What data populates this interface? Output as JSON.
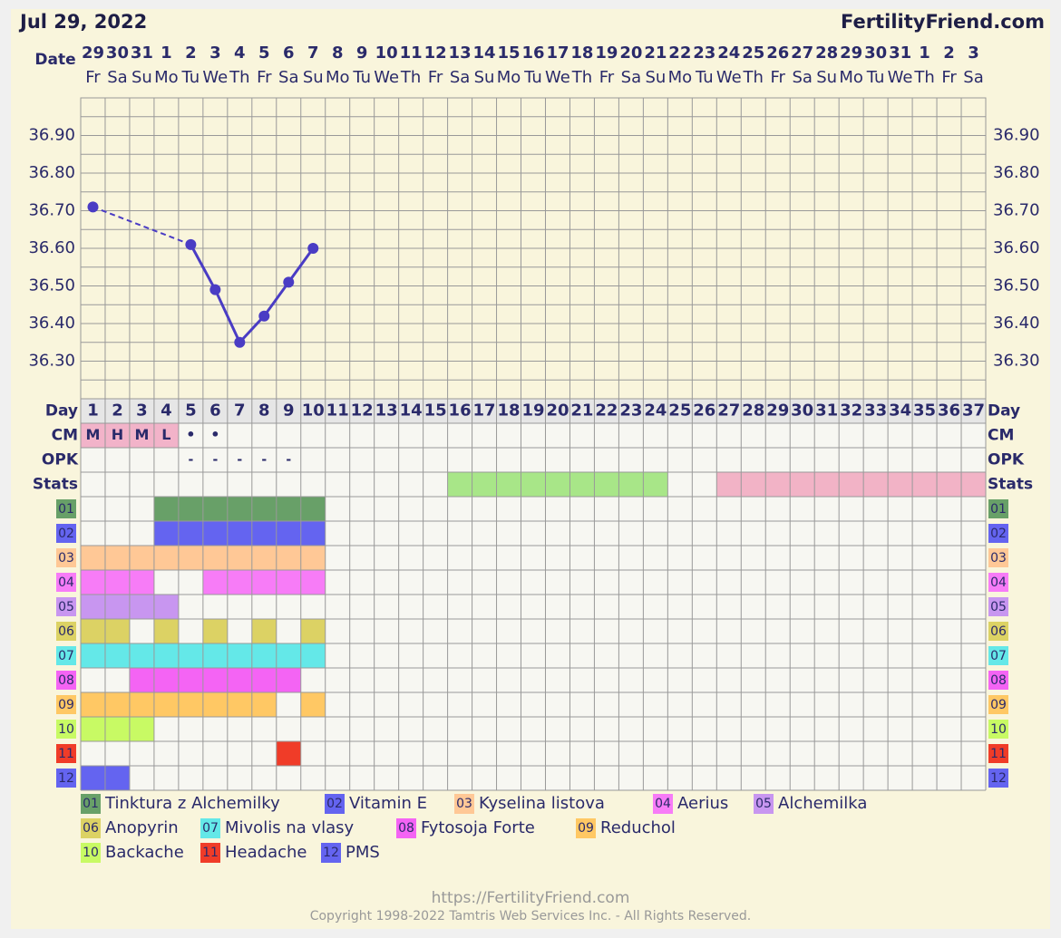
{
  "header": {
    "date": "Jul 29, 2022",
    "site": "FertilityFriend.com"
  },
  "chart_data": {
    "type": "line",
    "date_label": "Date",
    "day_label": "Day",
    "cm_label": "CM",
    "opk_label": "OPK",
    "stats_label": "Stats",
    "categories": [
      "29",
      "30",
      "31",
      "1",
      "2",
      "3",
      "4",
      "5",
      "6",
      "7",
      "8",
      "9",
      "10",
      "11",
      "12",
      "13",
      "14",
      "15",
      "16",
      "17",
      "18",
      "19",
      "20",
      "21",
      "22",
      "23",
      "24",
      "25",
      "26",
      "27",
      "28",
      "29",
      "30",
      "31",
      "1",
      "2",
      "3"
    ],
    "weekdays": [
      "Fr",
      "Sa",
      "Su",
      "Mo",
      "Tu",
      "We",
      "Th",
      "Fr",
      "Sa",
      "Su",
      "Mo",
      "Tu",
      "We",
      "Th",
      "Fr",
      "Sa",
      "Su",
      "Mo",
      "Tu",
      "We",
      "Th",
      "Fr",
      "Sa",
      "Su",
      "Mo",
      "Tu",
      "We",
      "Th",
      "Fr",
      "Sa",
      "Su",
      "Mo",
      "Tu",
      "We",
      "Th",
      "Fr",
      "Sa"
    ],
    "days": [
      1,
      2,
      3,
      4,
      5,
      6,
      7,
      8,
      9,
      10,
      11,
      12,
      13,
      14,
      15,
      16,
      17,
      18,
      19,
      20,
      21,
      22,
      23,
      24,
      25,
      26,
      27,
      28,
      29,
      30,
      31,
      32,
      33,
      34,
      35,
      36,
      37
    ],
    "series": [
      {
        "color": "#4a3cc4",
        "values": [
          36.71,
          null,
          null,
          null,
          36.61,
          36.49,
          36.35,
          36.42,
          36.51,
          36.6,
          null,
          null,
          null,
          null,
          null,
          null,
          null,
          null,
          null,
          null,
          null,
          null,
          null,
          null,
          null,
          null,
          null,
          null,
          null,
          null,
          null,
          null,
          null,
          null,
          null,
          null,
          null
        ]
      }
    ],
    "ylim": [
      36.2,
      37.0
    ],
    "yticks": [
      {
        "value": 36.3,
        "label": "36.30"
      },
      {
        "value": 36.4,
        "label": "36.40"
      },
      {
        "value": 36.5,
        "label": "36.50"
      },
      {
        "value": 36.6,
        "label": "36.60"
      },
      {
        "value": 36.7,
        "label": "36.70"
      },
      {
        "value": 36.8,
        "label": "36.80"
      },
      {
        "value": 36.9,
        "label": "36.90"
      }
    ],
    "grid": true,
    "cm": [
      "M",
      "H",
      "M",
      "L",
      "•",
      "•",
      null,
      null,
      null,
      null,
      null,
      null,
      null,
      null,
      null,
      null,
      null,
      null,
      null,
      null,
      null,
      null,
      null,
      null,
      null,
      null,
      null,
      null,
      null,
      null,
      null,
      null,
      null,
      null,
      null,
      null,
      null
    ],
    "cm_colors": [
      "#f2b3c9",
      "#f2b3c9",
      "#f2b3c9",
      "#f2b3c9",
      null,
      null,
      null,
      null,
      null,
      null,
      null,
      null,
      null,
      null,
      null,
      null,
      null,
      null,
      null,
      null,
      null,
      null,
      null,
      null,
      null,
      null,
      null,
      null,
      null,
      null,
      null,
      null,
      null,
      null,
      null,
      null,
      null
    ],
    "opk": [
      null,
      null,
      null,
      null,
      "-",
      "-",
      "-",
      "-",
      "-",
      null,
      null,
      null,
      null,
      null,
      null,
      null,
      null,
      null,
      null,
      null,
      null,
      null,
      null,
      null,
      null,
      null,
      null,
      null,
      null,
      null,
      null,
      null,
      null,
      null,
      null,
      null,
      null
    ],
    "stats": [
      null,
      null,
      null,
      null,
      null,
      null,
      null,
      null,
      null,
      null,
      null,
      null,
      null,
      null,
      null,
      "#a8e688",
      "#a8e688",
      "#a8e688",
      "#a8e688",
      "#a8e688",
      "#a8e688",
      "#a8e688",
      "#a8e688",
      "#a8e688",
      null,
      null,
      "#f2b3c6",
      "#f2b3c6",
      "#f2b3c6",
      "#f2b3c6",
      "#f2b3c6",
      "#f2b3c6",
      "#f2b3c6",
      "#f2b3c6",
      "#f2b3c6",
      "#f2b3c6",
      "#f2b3c6"
    ],
    "items": [
      {
        "code": "01",
        "name": "Tinktura z Alchemilky",
        "color": "#68a068",
        "days": [
          4,
          5,
          6,
          7,
          8,
          9,
          10
        ]
      },
      {
        "code": "02",
        "name": "Vitamin E",
        "color": "#6464f0",
        "days": [
          4,
          5,
          6,
          7,
          8,
          9,
          10
        ]
      },
      {
        "code": "03",
        "name": "Kyselina listova",
        "color": "#ffc896",
        "days": [
          1,
          2,
          3,
          4,
          5,
          6,
          7,
          8,
          9,
          10
        ]
      },
      {
        "code": "04",
        "name": "Aerius",
        "color": "#f77cf7",
        "days": [
          1,
          2,
          3,
          6,
          7,
          8,
          9,
          10
        ]
      },
      {
        "code": "05",
        "name": "Alchemilka",
        "color": "#c896f0",
        "days": [
          1,
          2,
          3,
          4
        ]
      },
      {
        "code": "06",
        "name": "Anopyrin",
        "color": "#dcd264",
        "days": [
          1,
          2,
          4,
          6,
          8,
          10
        ]
      },
      {
        "code": "07",
        "name": "Mivolis na vlasy",
        "color": "#64e8e8",
        "days": [
          1,
          2,
          3,
          4,
          5,
          6,
          7,
          8,
          9,
          10
        ]
      },
      {
        "code": "08",
        "name": "Fytosoja Forte",
        "color": "#f464f4",
        "days": [
          3,
          4,
          5,
          6,
          7,
          8,
          9
        ]
      },
      {
        "code": "09",
        "name": "Reduchol",
        "color": "#ffc864",
        "days": [
          1,
          2,
          3,
          4,
          5,
          6,
          7,
          8,
          10
        ]
      },
      {
        "code": "10",
        "name": "Backache",
        "color": "#c8fa64",
        "days": [
          1,
          2,
          3
        ]
      },
      {
        "code": "11",
        "name": "Headache",
        "color": "#f03c28",
        "days": [
          9
        ]
      },
      {
        "code": "12",
        "name": "PMS",
        "color": "#6464f0",
        "days": [
          1,
          2
        ]
      }
    ]
  },
  "footer": {
    "url": "https://FertilityFriend.com",
    "copyright": "Copyright 1998-2022 Tamtris Web Services Inc. - All Rights Reserved."
  }
}
